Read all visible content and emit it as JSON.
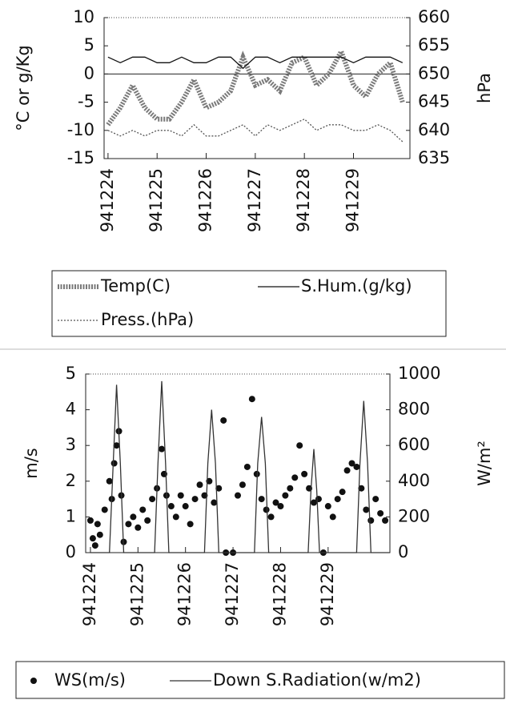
{
  "chart_data": [
    {
      "type": "line",
      "ylabel": "°C or g/Kg",
      "y2label": "hPa",
      "x": [
        0,
        0.25,
        0.5,
        0.75,
        1,
        1.25,
        1.5,
        1.75,
        2,
        2.25,
        2.5,
        2.75,
        3,
        3.25,
        3.5,
        3.75,
        4,
        4.25,
        4.5,
        4.75,
        5,
        5.25,
        5.5,
        5.75,
        6
      ],
      "xlim": [
        -0.08,
        6.15
      ],
      "xticks": [
        {
          "value": 0,
          "label": "941224"
        },
        {
          "value": 1,
          "label": "941225"
        },
        {
          "value": 2,
          "label": "941226"
        },
        {
          "value": 3,
          "label": "941227"
        },
        {
          "value": 4,
          "label": "941228"
        },
        {
          "value": 5,
          "label": "941229"
        }
      ],
      "ylim": [
        -15,
        10
      ],
      "yticks": [
        -15,
        -10,
        -5,
        0,
        5,
        10
      ],
      "y2lim": [
        635,
        660
      ],
      "y2ticks": [
        635,
        640,
        645,
        650,
        655,
        660
      ],
      "zero_line": true,
      "series": [
        {
          "name": "Temp(C)",
          "color": "#7a7a7a",
          "style": "hatched",
          "values": [
            -9,
            -6,
            -2,
            -6,
            -8,
            -8,
            -5,
            -1,
            -6,
            -5,
            -3,
            3,
            -2,
            -1,
            -3,
            2,
            3,
            -2,
            0,
            4,
            -2,
            -4,
            0,
            2,
            -5
          ]
        },
        {
          "name": "S.Hum.(g/kg)",
          "color": "#111111",
          "style": "solid",
          "values": [
            3,
            2,
            3,
            3,
            2,
            2,
            3,
            2,
            2,
            3,
            3,
            1,
            3,
            3,
            2,
            3,
            3,
            3,
            3,
            3,
            2,
            3,
            3,
            3,
            2
          ]
        },
        {
          "name": "Press.(hPa)",
          "color": "#555555",
          "style": "dotted",
          "axis": "y2",
          "values": [
            640,
            639,
            640,
            639,
            640,
            640,
            639,
            641,
            639,
            639,
            640,
            641,
            639,
            641,
            640,
            641,
            642,
            640,
            641,
            641,
            640,
            640,
            641,
            640,
            638
          ]
        }
      ]
    },
    {
      "type": "scatter-line",
      "ylabel": "m/s",
      "y2label": "W/m²",
      "xlim": [
        -0.1,
        6.3
      ],
      "xticks": [
        {
          "value": 0,
          "label": "941224"
        },
        {
          "value": 1,
          "label": "941225"
        },
        {
          "value": 2,
          "label": "941226"
        },
        {
          "value": 3,
          "label": "941227"
        },
        {
          "value": 4,
          "label": "941228"
        },
        {
          "value": 5,
          "label": "941229"
        }
      ],
      "ylim": [
        0,
        5
      ],
      "yticks": [
        0,
        1,
        2,
        3,
        4,
        5
      ],
      "y2lim": [
        0,
        1000
      ],
      "y2ticks": [
        0,
        200,
        400,
        600,
        800,
        1000
      ],
      "series": [
        {
          "name": "WS(m/s)",
          "color": "#111111",
          "style": "dot",
          "x": [
            0,
            0.05,
            0.1,
            0.15,
            0.2,
            0.3,
            0.4,
            0.45,
            0.5,
            0.55,
            0.6,
            0.65,
            0.7,
            0.8,
            0.9,
            1.0,
            1.1,
            1.2,
            1.3,
            1.4,
            1.5,
            1.55,
            1.6,
            1.7,
            1.8,
            1.9,
            2.0,
            2.1,
            2.2,
            2.3,
            2.4,
            2.5,
            2.6,
            2.7,
            2.8,
            2.85,
            3.0,
            3.1,
            3.2,
            3.3,
            3.4,
            3.5,
            3.6,
            3.7,
            3.8,
            3.9,
            4.0,
            4.1,
            4.2,
            4.3,
            4.4,
            4.5,
            4.6,
            4.7,
            4.8,
            4.9,
            5.0,
            5.1,
            5.2,
            5.3,
            5.4,
            5.5,
            5.6,
            5.7,
            5.8,
            5.9,
            6.0,
            6.1,
            6.2
          ],
          "values": [
            0.9,
            0.4,
            0.2,
            0.8,
            0.5,
            1.2,
            2.0,
            1.5,
            2.5,
            3.0,
            3.4,
            1.6,
            0.3,
            0.8,
            1.0,
            0.7,
            1.2,
            0.9,
            1.5,
            1.8,
            2.9,
            2.2,
            1.6,
            1.3,
            1.0,
            1.6,
            1.3,
            0.8,
            1.5,
            1.9,
            1.6,
            2.0,
            1.4,
            1.8,
            3.7,
            0,
            0,
            1.6,
            1.9,
            2.4,
            4.3,
            2.2,
            1.5,
            1.2,
            1.0,
            1.4,
            1.3,
            1.6,
            1.8,
            2.1,
            3.0,
            2.2,
            1.8,
            1.4,
            1.5,
            0,
            1.3,
            1.0,
            1.5,
            1.7,
            2.3,
            2.5,
            2.4,
            1.8,
            1.2,
            0.9,
            1.5,
            1.1,
            0.9
          ]
        },
        {
          "name": "Down S.Radiation(w/m2)",
          "color": "#333333",
          "style": "solid",
          "axis": "y2",
          "x": [
            0,
            0.4,
            0.48,
            0.55,
            0.63,
            0.7,
            1.35,
            1.42,
            1.5,
            1.58,
            1.65,
            2.4,
            2.47,
            2.55,
            2.63,
            2.7,
            3.45,
            3.52,
            3.6,
            3.68,
            3.75,
            4.58,
            4.64,
            4.7,
            4.76,
            4.82,
            5.6,
            5.67,
            5.75,
            5.83,
            5.9,
            6.3
          ],
          "values": [
            0,
            0,
            500,
            940,
            500,
            0,
            0,
            500,
            960,
            500,
            0,
            0,
            500,
            800,
            500,
            0,
            0,
            500,
            760,
            500,
            0,
            0,
            350,
            580,
            350,
            0,
            0,
            500,
            850,
            500,
            0,
            0
          ]
        }
      ]
    }
  ]
}
